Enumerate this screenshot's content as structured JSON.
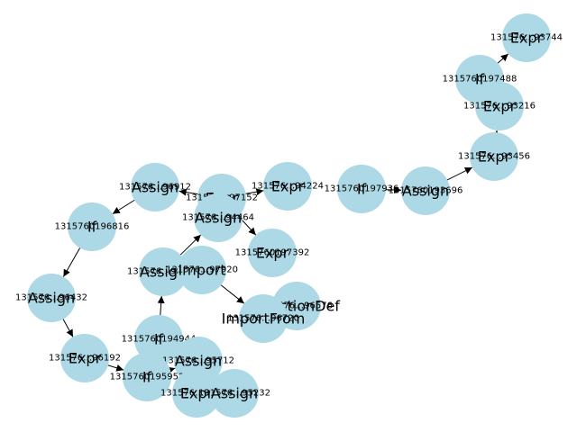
{
  "graph": {
    "nodes": [
      {
        "key": "n1",
        "id_label": "131576…93744",
        "type_label": "Expr"
      },
      {
        "key": "n2",
        "id_label": "1315760197488",
        "type_label": "If"
      },
      {
        "key": "n3",
        "id_label": "131576…93216",
        "type_label": "Expr"
      },
      {
        "key": "n4",
        "id_label": "131576…93456",
        "type_label": "Expr"
      },
      {
        "key": "n5",
        "id_label": "1315760193696",
        "type_label": "Assign"
      },
      {
        "key": "n6",
        "id_label": "1315760197936",
        "type_label": "If"
      },
      {
        "key": "n7",
        "id_label": "131576…94224",
        "type_label": "Expr"
      },
      {
        "key": "n8",
        "id_label": "131576…97152",
        "type_label": "Expr"
      },
      {
        "key": "n9",
        "id_label": "131576…94464",
        "type_label": "Assign"
      },
      {
        "key": "n10",
        "id_label": "131576…96912",
        "type_label": "Assign"
      },
      {
        "key": "n11",
        "id_label": "1315760197392",
        "type_label": "Expr"
      },
      {
        "key": "n12",
        "id_label": "1315760196816",
        "type_label": "If"
      },
      {
        "key": "n13",
        "id_label": "131576…98592",
        "type_label": "Assign"
      },
      {
        "key": "n14",
        "id_label": "131576…97920",
        "type_label": "Import"
      },
      {
        "key": "n15",
        "id_label": "131576…96576",
        "type_label": "FunctionDef"
      },
      {
        "key": "n16",
        "id_label": "131576…96720",
        "type_label": "ImportFrom"
      },
      {
        "key": "n17",
        "id_label": "131576…96432",
        "type_label": "Assign"
      },
      {
        "key": "n18",
        "id_label": "1315760194944",
        "type_label": "If"
      },
      {
        "key": "n19",
        "id_label": "131576…96192",
        "type_label": "Expr"
      },
      {
        "key": "n20",
        "id_label": "131576…95712",
        "type_label": "Assign"
      },
      {
        "key": "n21",
        "id_label": "1315760195952",
        "type_label": "If"
      },
      {
        "key": "n22",
        "id_label": "131576…95472",
        "type_label": "Expr"
      },
      {
        "key": "n23",
        "id_label": "131576…95232",
        "type_label": "Assign"
      }
    ],
    "edges": [
      {
        "from": "n2",
        "to": "n1"
      },
      {
        "from": "n3",
        "to": "n2"
      },
      {
        "from": "n4",
        "to": "n3"
      },
      {
        "from": "n5",
        "to": "n4"
      },
      {
        "from": "n6",
        "to": "n5"
      },
      {
        "from": "n8",
        "to": "n7"
      },
      {
        "from": "n8",
        "to": "n10"
      },
      {
        "from": "n8",
        "to": "n11"
      },
      {
        "from": "n10",
        "to": "n12"
      },
      {
        "from": "n12",
        "to": "n17"
      },
      {
        "from": "n17",
        "to": "n19"
      },
      {
        "from": "n19",
        "to": "n21"
      },
      {
        "from": "n21",
        "to": "n20"
      },
      {
        "from": "n18",
        "to": "n13"
      },
      {
        "from": "n13",
        "to": "n9"
      },
      {
        "from": "n14",
        "to": "n16"
      },
      {
        "from": "n15",
        "to": "n16"
      }
    ]
  }
}
